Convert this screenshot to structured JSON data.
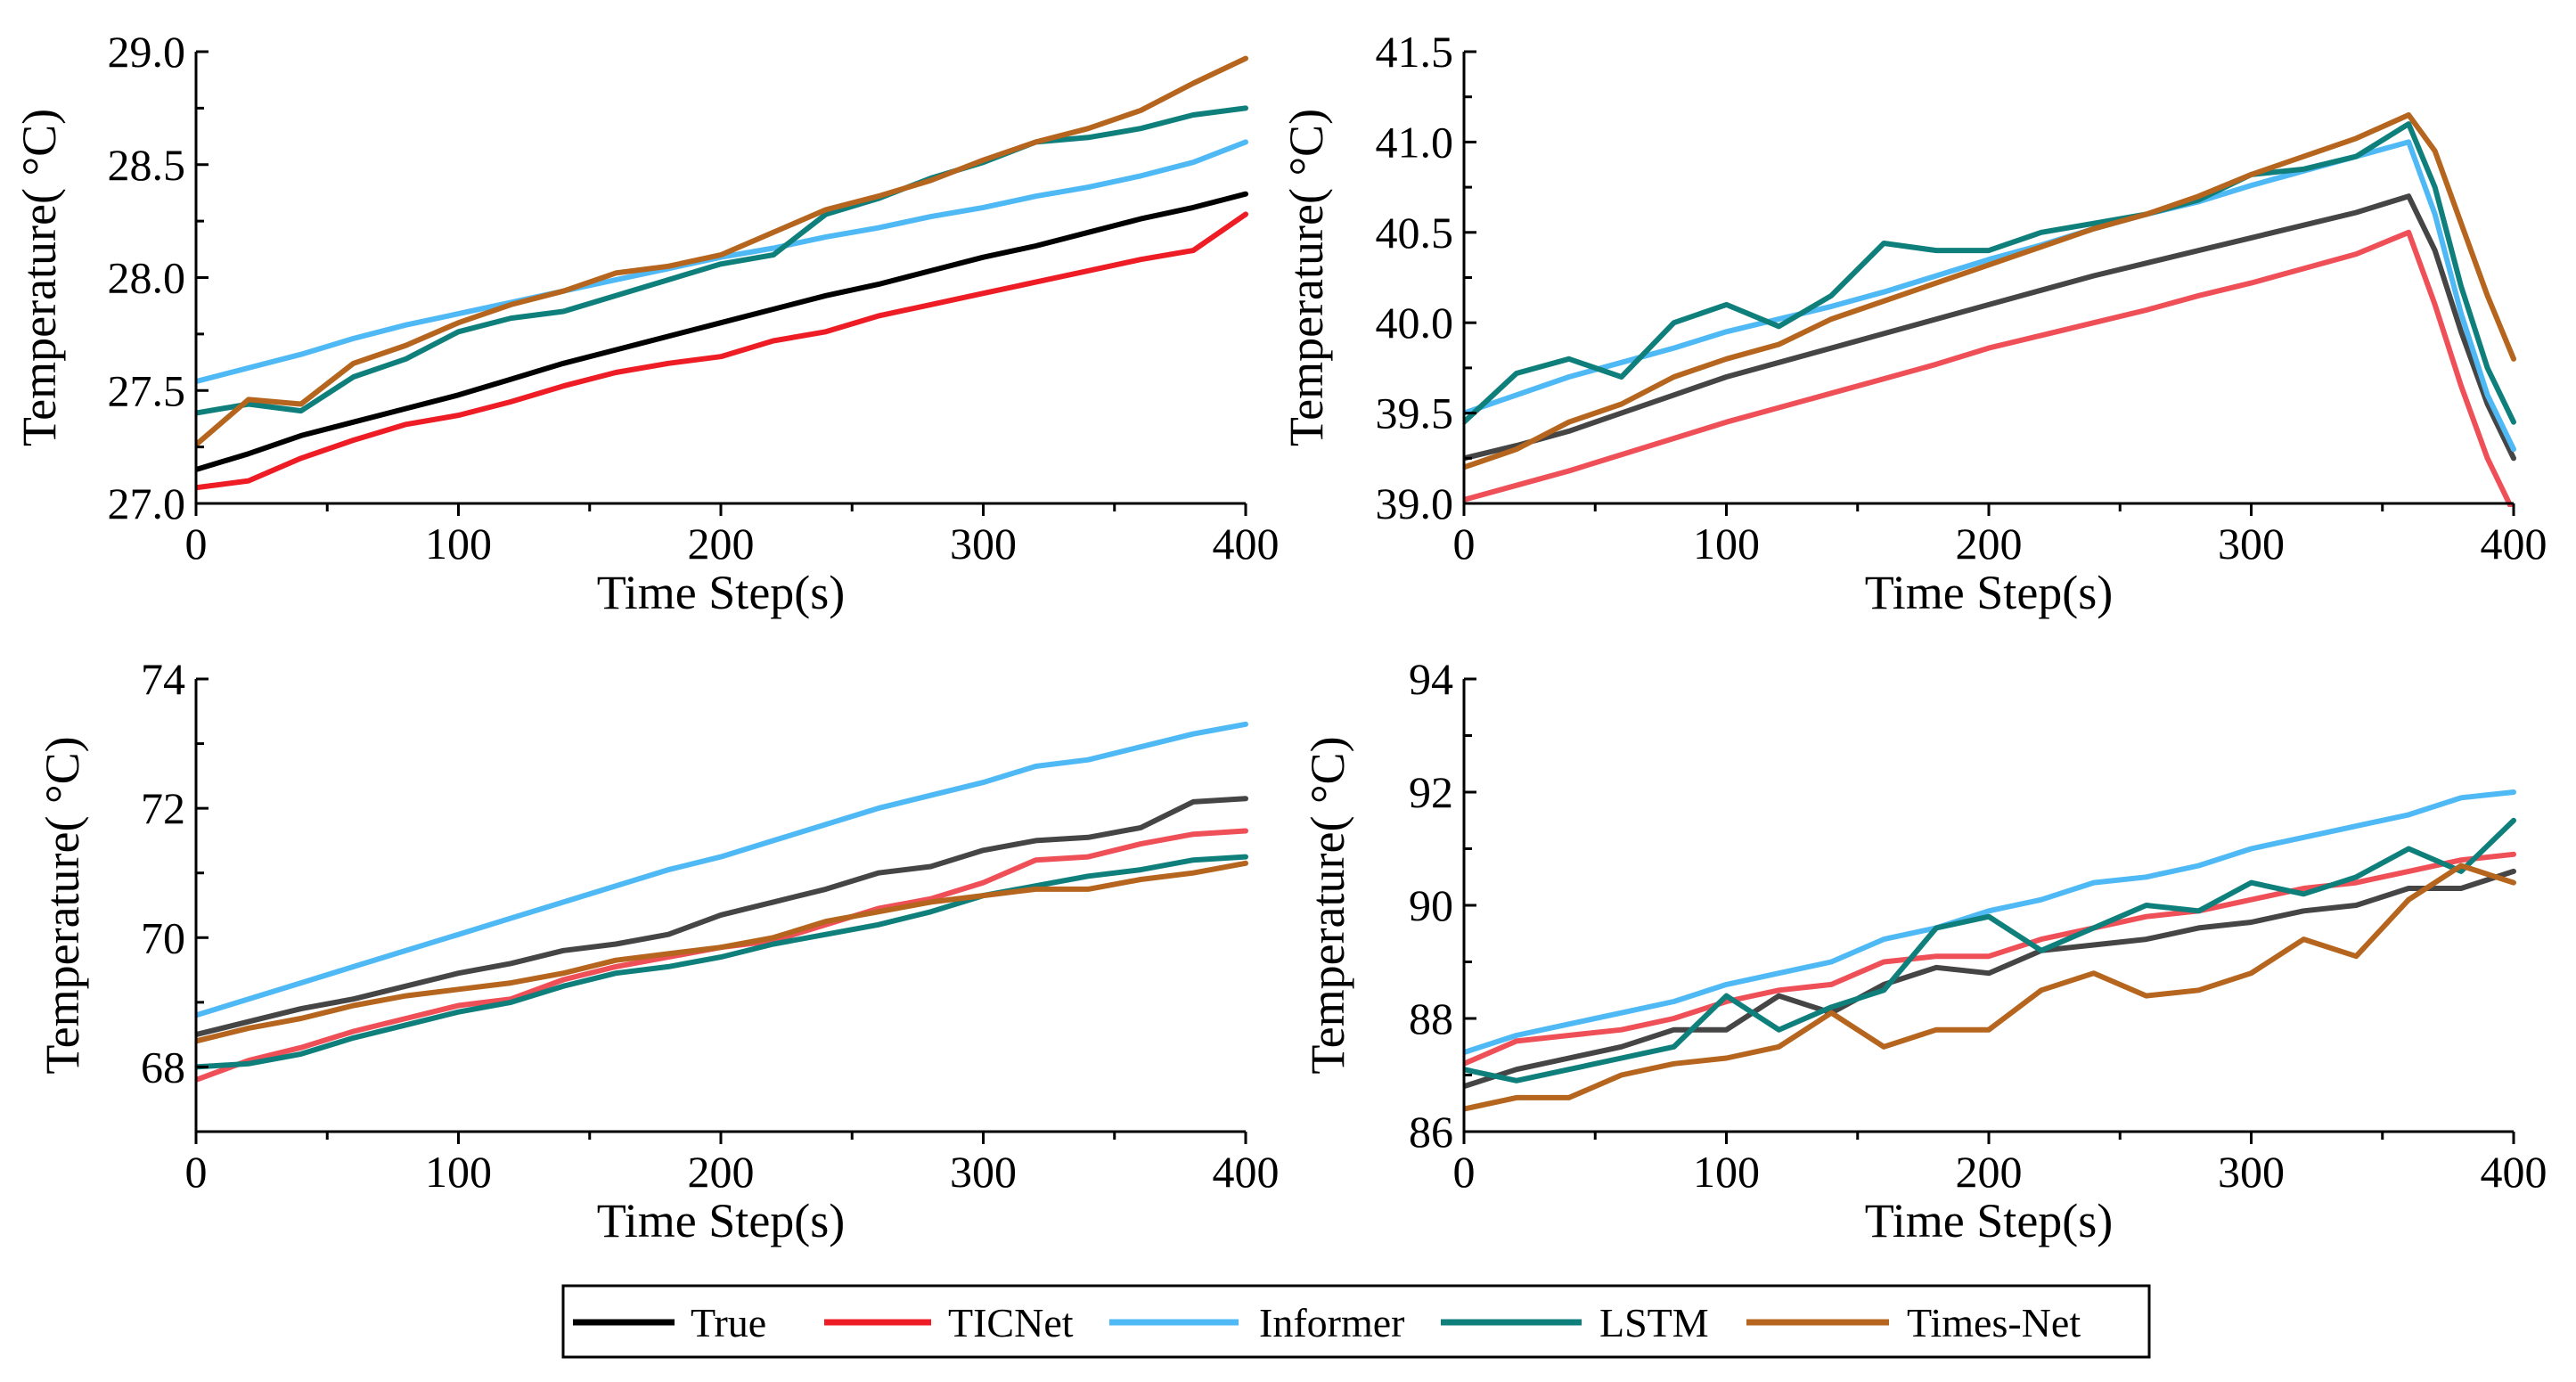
{
  "chart_data": [
    {
      "type": "line",
      "panel": "top-left",
      "xlabel": "Time Step(s)",
      "ylabel": "Temperature( °C)",
      "xlim": [
        0,
        400
      ],
      "ylim": [
        27.0,
        29.0
      ],
      "xticks": [
        0,
        100,
        200,
        300,
        400
      ],
      "yticks": [
        27.0,
        27.5,
        28.0,
        28.5,
        29.0
      ],
      "ytick_labels": [
        "27.0",
        "27.5",
        "28.0",
        "28.5",
        "29.0"
      ],
      "x": [
        0,
        20,
        40,
        60,
        80,
        100,
        120,
        140,
        160,
        180,
        200,
        220,
        240,
        260,
        280,
        300,
        320,
        340,
        360,
        380,
        400
      ],
      "series": [
        {
          "name": "True",
          "values": [
            27.15,
            27.22,
            27.3,
            27.36,
            27.42,
            27.48,
            27.55,
            27.62,
            27.68,
            27.74,
            27.8,
            27.86,
            27.92,
            27.97,
            28.03,
            28.09,
            28.14,
            28.2,
            28.26,
            28.31,
            28.37
          ]
        },
        {
          "name": "TICNet",
          "values": [
            27.07,
            27.1,
            27.2,
            27.28,
            27.35,
            27.39,
            27.45,
            27.52,
            27.58,
            27.62,
            27.65,
            27.72,
            27.76,
            27.83,
            27.88,
            27.93,
            27.98,
            28.03,
            28.08,
            28.12,
            28.28
          ]
        },
        {
          "name": "Informer",
          "values": [
            27.54,
            27.6,
            27.66,
            27.73,
            27.79,
            27.84,
            27.89,
            27.94,
            27.99,
            28.04,
            28.09,
            28.13,
            28.18,
            28.22,
            28.27,
            28.31,
            28.36,
            28.4,
            28.45,
            28.51,
            28.6
          ]
        },
        {
          "name": "LSTM",
          "values": [
            27.4,
            27.44,
            27.41,
            27.56,
            27.64,
            27.76,
            27.82,
            27.85,
            27.92,
            27.99,
            28.06,
            28.1,
            28.28,
            28.35,
            28.44,
            28.51,
            28.6,
            28.62,
            28.66,
            28.72,
            28.75
          ]
        },
        {
          "name": "Times-Net",
          "values": [
            27.26,
            27.46,
            27.44,
            27.62,
            27.7,
            27.8,
            27.88,
            27.94,
            28.02,
            28.05,
            28.1,
            28.2,
            28.3,
            28.36,
            28.43,
            28.52,
            28.6,
            28.66,
            28.74,
            28.86,
            28.97
          ]
        }
      ]
    },
    {
      "type": "line",
      "panel": "top-right",
      "xlabel": "Time Step(s)",
      "ylabel": "Temperature( °C)",
      "xlim": [
        0,
        400
      ],
      "ylim": [
        39.0,
        41.5
      ],
      "xticks": [
        0,
        100,
        200,
        300,
        400
      ],
      "yticks": [
        39.0,
        39.5,
        40.0,
        40.5,
        41.0,
        41.5
      ],
      "ytick_labels": [
        "39.0",
        "39.5",
        "40.0",
        "40.5",
        "41.0",
        "41.5"
      ],
      "x": [
        0,
        20,
        40,
        60,
        80,
        100,
        120,
        140,
        160,
        180,
        200,
        220,
        240,
        260,
        280,
        300,
        320,
        340,
        360,
        370,
        380,
        390,
        400
      ],
      "series": [
        {
          "name": "True",
          "values": [
            39.25,
            39.32,
            39.4,
            39.5,
            39.6,
            39.7,
            39.78,
            39.86,
            39.94,
            40.02,
            40.1,
            40.18,
            40.26,
            40.33,
            40.4,
            40.47,
            40.54,
            40.61,
            40.7,
            40.4,
            39.95,
            39.55,
            39.25
          ]
        },
        {
          "name": "TICNet",
          "values": [
            39.02,
            39.1,
            39.18,
            39.27,
            39.36,
            39.45,
            39.53,
            39.61,
            39.69,
            39.77,
            39.86,
            39.93,
            40.0,
            40.07,
            40.15,
            40.22,
            40.3,
            40.38,
            40.5,
            40.1,
            39.65,
            39.25,
            38.95
          ]
        },
        {
          "name": "Informer",
          "values": [
            39.5,
            39.6,
            39.7,
            39.78,
            39.86,
            39.95,
            40.02,
            40.09,
            40.17,
            40.26,
            40.35,
            40.43,
            40.52,
            40.6,
            40.67,
            40.76,
            40.84,
            40.92,
            41.0,
            40.6,
            40.05,
            39.6,
            39.3
          ]
        },
        {
          "name": "LSTM",
          "values": [
            39.45,
            39.72,
            39.8,
            39.7,
            40.0,
            40.1,
            39.98,
            40.15,
            40.44,
            40.4,
            40.4,
            40.5,
            40.55,
            40.6,
            40.68,
            40.82,
            40.85,
            40.92,
            41.1,
            40.75,
            40.2,
            39.75,
            39.45
          ]
        },
        {
          "name": "Times-Net",
          "values": [
            39.2,
            39.3,
            39.45,
            39.55,
            39.7,
            39.8,
            39.88,
            40.02,
            40.12,
            40.22,
            40.32,
            40.42,
            40.52,
            40.6,
            40.7,
            40.82,
            40.92,
            41.02,
            41.15,
            40.95,
            40.55,
            40.15,
            39.8
          ]
        }
      ]
    },
    {
      "type": "line",
      "panel": "bottom-left",
      "xlabel": "Time Step(s)",
      "ylabel": "Temperature( °C)",
      "xlim": [
        0,
        400
      ],
      "ylim": [
        67,
        74
      ],
      "xticks": [
        0,
        100,
        200,
        300,
        400
      ],
      "yticks": [
        68,
        70,
        72,
        74
      ],
      "ytick_labels": [
        "68",
        "70",
        "72",
        "74"
      ],
      "x": [
        0,
        20,
        40,
        60,
        80,
        100,
        120,
        140,
        160,
        180,
        200,
        220,
        240,
        260,
        280,
        300,
        320,
        340,
        360,
        380,
        400
      ],
      "series": [
        {
          "name": "True",
          "values": [
            68.5,
            68.7,
            68.9,
            69.05,
            69.25,
            69.45,
            69.6,
            69.8,
            69.9,
            70.05,
            70.35,
            70.55,
            70.75,
            71.0,
            71.1,
            71.35,
            71.5,
            71.55,
            71.7,
            72.1,
            72.15
          ]
        },
        {
          "name": "TICNet",
          "values": [
            67.8,
            68.1,
            68.3,
            68.55,
            68.75,
            68.95,
            69.05,
            69.35,
            69.55,
            69.7,
            69.85,
            69.95,
            70.2,
            70.45,
            70.6,
            70.85,
            71.2,
            71.25,
            71.45,
            71.6,
            71.65
          ]
        },
        {
          "name": "Informer",
          "values": [
            68.8,
            69.05,
            69.3,
            69.55,
            69.8,
            70.05,
            70.3,
            70.55,
            70.8,
            71.05,
            71.25,
            71.5,
            71.75,
            72.0,
            72.2,
            72.4,
            72.65,
            72.75,
            72.95,
            73.15,
            73.3
          ]
        },
        {
          "name": "LSTM",
          "values": [
            68.0,
            68.05,
            68.2,
            68.45,
            68.65,
            68.85,
            69.0,
            69.25,
            69.45,
            69.55,
            69.7,
            69.9,
            70.05,
            70.2,
            70.4,
            70.65,
            70.8,
            70.95,
            71.05,
            71.2,
            71.25
          ]
        },
        {
          "name": "Times-Net",
          "values": [
            68.4,
            68.6,
            68.75,
            68.95,
            69.1,
            69.2,
            69.3,
            69.45,
            69.65,
            69.75,
            69.85,
            70.0,
            70.25,
            70.4,
            70.55,
            70.65,
            70.75,
            70.75,
            70.9,
            71.0,
            71.15
          ]
        }
      ]
    },
    {
      "type": "line",
      "panel": "bottom-right",
      "xlabel": "Time Step(s)",
      "ylabel": "Temperature( °C)",
      "xlim": [
        0,
        400
      ],
      "ylim": [
        86,
        94
      ],
      "xticks": [
        0,
        100,
        200,
        300,
        400
      ],
      "yticks": [
        86,
        88,
        90,
        92,
        94
      ],
      "ytick_labels": [
        "86",
        "88",
        "90",
        "92",
        "94"
      ],
      "x": [
        0,
        20,
        40,
        60,
        80,
        100,
        120,
        140,
        160,
        180,
        200,
        220,
        240,
        260,
        280,
        300,
        320,
        340,
        360,
        380,
        400
      ],
      "series": [
        {
          "name": "True",
          "values": [
            86.8,
            87.1,
            87.3,
            87.5,
            87.8,
            87.8,
            88.4,
            88.1,
            88.6,
            88.9,
            88.8,
            89.2,
            89.3,
            89.4,
            89.6,
            89.7,
            89.9,
            90.0,
            90.3,
            90.3,
            90.6
          ]
        },
        {
          "name": "TICNet",
          "values": [
            87.2,
            87.6,
            87.7,
            87.8,
            88.0,
            88.3,
            88.5,
            88.6,
            89.0,
            89.1,
            89.1,
            89.4,
            89.6,
            89.8,
            89.9,
            90.1,
            90.3,
            90.4,
            90.6,
            90.8,
            90.9
          ]
        },
        {
          "name": "Informer",
          "values": [
            87.4,
            87.7,
            87.9,
            88.1,
            88.3,
            88.6,
            88.8,
            89.0,
            89.4,
            89.6,
            89.9,
            90.1,
            90.4,
            90.5,
            90.7,
            91.0,
            91.2,
            91.4,
            91.6,
            91.9,
            92.0
          ]
        },
        {
          "name": "LSTM",
          "values": [
            87.1,
            86.9,
            87.1,
            87.3,
            87.5,
            88.4,
            87.8,
            88.2,
            88.5,
            89.6,
            89.8,
            89.2,
            89.6,
            90.0,
            89.9,
            90.4,
            90.2,
            90.5,
            91.0,
            90.6,
            91.5
          ]
        },
        {
          "name": "Times-Net",
          "values": [
            86.4,
            86.6,
            86.6,
            87.0,
            87.2,
            87.3,
            87.5,
            88.1,
            87.5,
            87.8,
            87.8,
            88.5,
            88.8,
            88.4,
            88.5,
            88.8,
            89.4,
            89.1,
            90.1,
            90.7,
            90.4
          ]
        }
      ]
    }
  ],
  "legend": {
    "position": "bottom-center",
    "items": [
      {
        "name": "True",
        "color": "#000000"
      },
      {
        "name": "TICNet",
        "color": "#ee1c24"
      },
      {
        "name": "Informer",
        "color": "#4fb9f5"
      },
      {
        "name": "LSTM",
        "color": "#0f7f7c"
      },
      {
        "name": "Times-Net",
        "color": "#b5651d"
      }
    ]
  },
  "series_colors": {
    "True": "#000000",
    "True_faded": "#454545",
    "TICNet": "#ee1c24",
    "TICNet_faded": "#ef4f57",
    "Informer": "#4fb9f5",
    "LSTM": "#0f7f7c",
    "Times-Net": "#b5651d"
  }
}
